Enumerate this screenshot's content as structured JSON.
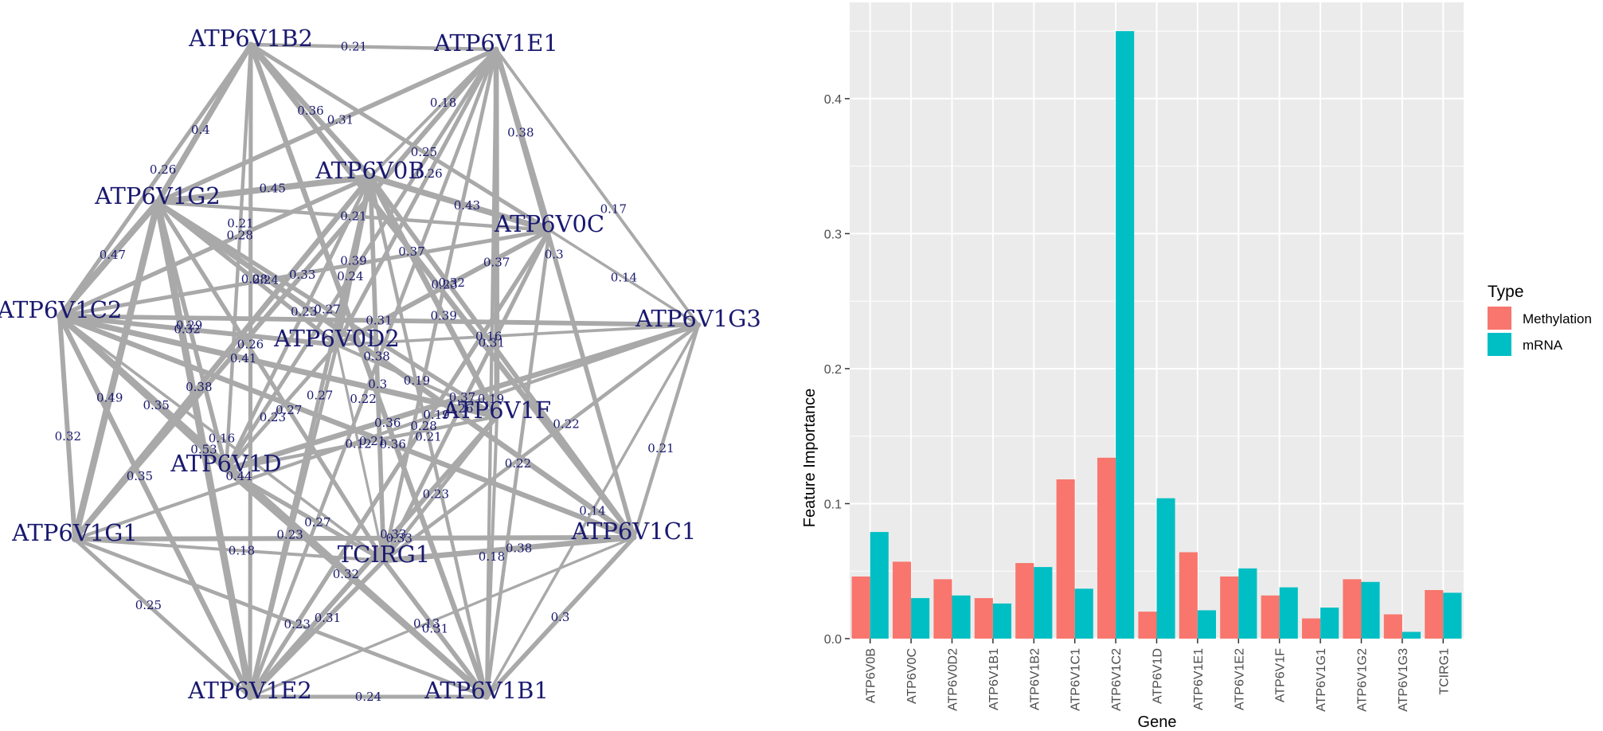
{
  "network": {
    "nodes": [
      {
        "id": "ATP6V1B2",
        "label": "ATP6V1B2"
      },
      {
        "id": "ATP6V1E1",
        "label": "ATP6V1E1"
      },
      {
        "id": "ATP6V0B",
        "label": "ATP6V0B"
      },
      {
        "id": "ATP6V1G2",
        "label": "ATP6V1G2"
      },
      {
        "id": "ATP6V0C",
        "label": "ATP6V0C"
      },
      {
        "id": "ATP6V1C2",
        "label": "ATP6V1C2"
      },
      {
        "id": "ATP6V1G3",
        "label": "ATP6V1G3"
      },
      {
        "id": "ATP6V0D2",
        "label": "ATP6V0D2"
      },
      {
        "id": "ATP6V1F",
        "label": "ATP6V1F"
      },
      {
        "id": "ATP6V1D",
        "label": "ATP6V1D"
      },
      {
        "id": "ATP6V1G1",
        "label": "ATP6V1G1"
      },
      {
        "id": "ATP6V1C1",
        "label": "ATP6V1C1"
      },
      {
        "id": "TCIRG1",
        "label": "TCIRG1"
      },
      {
        "id": "ATP6V1E2",
        "label": "ATP6V1E2"
      },
      {
        "id": "ATP6V1B1",
        "label": "ATP6V1B1"
      }
    ],
    "edges": [
      {
        "source": "ATP6V1B2",
        "target": "ATP6V1E1",
        "weight": "0.21"
      },
      {
        "source": "ATP6V1E2",
        "target": "ATP6V1B1",
        "weight": "0.24"
      },
      {
        "source": "ATP6V1E1",
        "target": "ATP6V1G3",
        "weight": "0.17"
      },
      {
        "source": "ATP6V1B2",
        "target": "ATP6V1C2",
        "weight": "0.26"
      },
      {
        "source": "ATP6V1C2",
        "target": "ATP6V1G1",
        "weight": "0.32"
      },
      {
        "source": "ATP6V1G1",
        "target": "ATP6V1E2",
        "weight": "0.25"
      },
      {
        "source": "ATP6V1C1",
        "target": "ATP6V1B1",
        "weight": "0.3"
      },
      {
        "source": "ATP6V1G3",
        "target": "ATP6V1C1",
        "weight": "0.21"
      },
      {
        "source": "ATP6V1G2",
        "target": "ATP6V1C2",
        "weight": "0.47"
      },
      {
        "source": "ATP6V1B2",
        "target": "ATP6V1G2",
        "weight": "0.4"
      },
      {
        "source": "ATP6V1E1",
        "target": "ATP6V1C1",
        "weight": "0.3"
      },
      {
        "source": "ATP6V0C",
        "target": "ATP6V1G3",
        "weight": "0.14"
      },
      {
        "source": "ATP6V1G2",
        "target": "ATP6V1G1",
        "weight": "0.49"
      },
      {
        "source": "ATP6V1B2",
        "target": "ATP6V1E2",
        "weight": "0.26"
      },
      {
        "source": "ATP6V1E1",
        "target": "ATP6V1B1",
        "weight": "0.19"
      },
      {
        "source": "ATP6V1C2",
        "target": "ATP6V1E2",
        "weight": "0.35"
      },
      {
        "source": "ATP6V1G3",
        "target": "ATP6V1B1",
        "weight": "0.14"
      },
      {
        "source": "ATP6V1G1",
        "target": "ATP6V1C1",
        "weight": "0.33"
      },
      {
        "source": "ATP6V1E2",
        "target": "ATP6V1C1",
        "weight": "0.13"
      },
      {
        "source": "ATP6V1G1",
        "target": "ATP6V1B1",
        "weight": "0.23"
      },
      {
        "source": "ATP6V1C2",
        "target": "ATP6V1B1",
        "weight": "0.44"
      },
      {
        "source": "ATP6V1G2",
        "target": "ATP6V1E2",
        "weight": "0.53"
      },
      {
        "source": "ATP6V1C2",
        "target": "ATP6V1C1",
        "weight": "0.36"
      },
      {
        "source": "ATP6V1G2",
        "target": "ATP6V1C1",
        "weight": "0.38"
      },
      {
        "source": "ATP6V1E1",
        "target": "ATP6V1E2",
        "weight": "0.22"
      },
      {
        "source": "ATP6V1G3",
        "target": "ATP6V1G1",
        "weight": "0.19"
      },
      {
        "source": "ATP6V1C2",
        "target": "ATP6V1G3",
        "weight": "0.31"
      },
      {
        "source": "ATP6V1B2",
        "target": "ATP6V1B1",
        "weight": "0.36"
      },
      {
        "source": "ATP6V1E1",
        "target": "ATP6V1G1",
        "weight": "0.33"
      },
      {
        "source": "ATP6V1G2",
        "target": "ATP6V1E1",
        "weight": "0.31"
      },
      {
        "source": "ATP6V1B2",
        "target": "ATP6V1C1",
        "weight": "0.37"
      },
      {
        "source": "ATP6V0B",
        "target": "ATP6V1B2",
        "weight": "0.36"
      },
      {
        "source": "ATP6V0B",
        "target": "ATP6V1E1",
        "weight": "0.18"
      },
      {
        "source": "ATP6V0B",
        "target": "ATP6V1G2",
        "weight": "0.45"
      },
      {
        "source": "ATP6V0B",
        "target": "ATP6V0C",
        "weight": "0.43"
      },
      {
        "source": "ATP6V0B",
        "target": "ATP6V1C2",
        "weight": "0.28"
      },
      {
        "source": "ATP6V0B",
        "target": "ATP6V0D2",
        "weight": "0.39"
      },
      {
        "source": "ATP6V0B",
        "target": "ATP6V1F",
        "weight": "0.39"
      },
      {
        "source": "ATP6V0B",
        "target": "ATP6V1D",
        "weight": "0.23"
      },
      {
        "source": "ATP6V0B",
        "target": "TCIRG1",
        "weight": "0.3"
      },
      {
        "source": "ATP6V0B",
        "target": "ATP6V1E2",
        "weight": "0.27"
      },
      {
        "source": "ATP6V0B",
        "target": "ATP6V1B1",
        "weight": "0.21"
      },
      {
        "source": "ATP6V0B",
        "target": "ATP6V1G1",
        "weight": "0.38"
      },
      {
        "source": "ATP6V0B",
        "target": "ATP6V1C1",
        "weight": "0.31"
      },
      {
        "source": "ATP6V0C",
        "target": "ATP6V1E1",
        "weight": "0.38"
      },
      {
        "source": "ATP6V0C",
        "target": "ATP6V1B2",
        "weight": "0.25"
      },
      {
        "source": "ATP6V0C",
        "target": "ATP6V1G2",
        "weight": "0.21"
      },
      {
        "source": "ATP6V0C",
        "target": "ATP6V1C2",
        "weight": "0.24"
      },
      {
        "source": "ATP6V0C",
        "target": "ATP6V0D2",
        "weight": "0.32"
      },
      {
        "source": "ATP6V0C",
        "target": "TCIRG1",
        "weight": "0.26"
      },
      {
        "source": "ATP6V0C",
        "target": "ATP6V1E2",
        "weight": "0.28"
      },
      {
        "source": "ATP6V0C",
        "target": "ATP6V1B1",
        "weight": "0.22"
      },
      {
        "source": "ATP6V0D2",
        "target": "ATP6V1E1",
        "weight": "0.26"
      },
      {
        "source": "ATP6V0D2",
        "target": "ATP6V1G2",
        "weight": "0.28"
      },
      {
        "source": "ATP6V0D2",
        "target": "ATP6V1C2",
        "weight": "0.32"
      },
      {
        "source": "ATP6V0D2",
        "target": "ATP6V1G3",
        "weight": "0.16"
      },
      {
        "source": "ATP6V0D2",
        "target": "ATP6V1F",
        "weight": "0.19"
      },
      {
        "source": "ATP6V0D2",
        "target": "ATP6V1D",
        "weight": "0.23"
      },
      {
        "source": "ATP6V0D2",
        "target": "TCIRG1",
        "weight": "0.12"
      },
      {
        "source": "ATP6V0D2",
        "target": "ATP6V1E2",
        "weight": "0.23"
      },
      {
        "source": "ATP6V1F",
        "target": "ATP6V1E1",
        "weight": "0.37"
      },
      {
        "source": "ATP6V1F",
        "target": "ATP6V1G2",
        "weight": "0.27"
      },
      {
        "source": "ATP6V1F",
        "target": "ATP6V1C2",
        "weight": "0.41"
      },
      {
        "source": "ATP6V1F",
        "target": "ATP6V1D",
        "weight": "0.21"
      },
      {
        "source": "ATP6V1F",
        "target": "TCIRG1",
        "weight": "0.23"
      },
      {
        "source": "ATP6V1F",
        "target": "ATP6V1E2",
        "weight": "0.33"
      },
      {
        "source": "ATP6V1F",
        "target": "ATP6V1B1",
        "weight": "0.18"
      },
      {
        "source": "ATP6V1D",
        "target": "ATP6V1B2",
        "weight": "0.21"
      },
      {
        "source": "ATP6V1D",
        "target": "ATP6V1E1",
        "weight": "0.24"
      },
      {
        "source": "ATP6V1D",
        "target": "ATP6V1G2",
        "weight": "0.29"
      },
      {
        "source": "ATP6V1D",
        "target": "ATP6V1C2",
        "weight": "0.35"
      },
      {
        "source": "ATP6V1D",
        "target": "ATP6V1G3",
        "weight": "0.37"
      },
      {
        "source": "ATP6V1D",
        "target": "TCIRG1",
        "weight": "0.27"
      },
      {
        "source": "ATP6V1D",
        "target": "ATP6V1B1",
        "weight": "0.32"
      },
      {
        "source": "TCIRG1",
        "target": "ATP6V1E1",
        "weight": "0.23"
      },
      {
        "source": "TCIRG1",
        "target": "ATP6V1G2",
        "weight": "0.27"
      },
      {
        "source": "TCIRG1",
        "target": "ATP6V1C2",
        "weight": "0.16"
      },
      {
        "source": "TCIRG1",
        "target": "ATP6V1G3",
        "weight": "0.22"
      },
      {
        "source": "TCIRG1",
        "target": "ATP6V1G1",
        "weight": "0.18"
      },
      {
        "source": "TCIRG1",
        "target": "ATP6V1C1",
        "weight": "0.38"
      },
      {
        "source": "TCIRG1",
        "target": "ATP6V1E2",
        "weight": "0.31"
      },
      {
        "source": "TCIRG1",
        "target": "ATP6V1B1",
        "weight": "0.31"
      }
    ]
  },
  "chart_data": {
    "type": "bar",
    "title": "",
    "xlabel": "Gene",
    "ylabel": "Feature Importance",
    "ylim": [
      0,
      0.4713
    ],
    "yticks": [
      0.0,
      0.1,
      0.2,
      0.3,
      0.4
    ],
    "ytick_labels": [
      "0.0",
      "0.1",
      "0.2",
      "0.3",
      "0.4"
    ],
    "grid": true,
    "categories": [
      "ATP6V0B",
      "ATP6V0C",
      "ATP6V0D2",
      "ATP6V1B1",
      "ATP6V1B2",
      "ATP6V1C1",
      "ATP6V1C2",
      "ATP6V1D",
      "ATP6V1E1",
      "ATP6V1E2",
      "ATP6V1F",
      "ATP6V1G1",
      "ATP6V1G2",
      "ATP6V1G3",
      "TCIRG1"
    ],
    "series": [
      {
        "name": "Methylation",
        "color": "#F8766D",
        "values": [
          0.046,
          0.057,
          0.044,
          0.03,
          0.056,
          0.118,
          0.134,
          0.02,
          0.064,
          0.046,
          0.032,
          0.015,
          0.044,
          0.018,
          0.036
        ]
      },
      {
        "name": "mRNA",
        "color": "#00BFC4",
        "values": [
          0.079,
          0.03,
          0.032,
          0.026,
          0.053,
          0.037,
          0.45,
          0.104,
          0.021,
          0.052,
          0.038,
          0.023,
          0.042,
          0.005,
          0.034
        ]
      }
    ],
    "legend": {
      "title": "Type",
      "position": "right"
    },
    "panel_color": "#EBEBEB"
  }
}
